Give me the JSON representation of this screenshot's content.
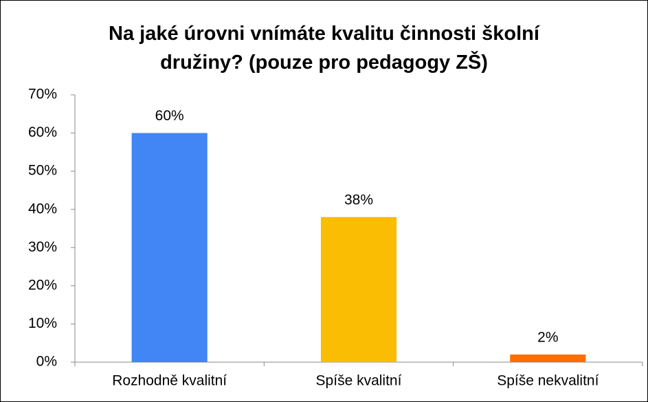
{
  "chart_data": {
    "type": "bar",
    "title": "Na jaké úrovni vnímáte kvalitu činnosti školní družiny? (pouze pro pedagogy ZŠ)",
    "categories": [
      "Rozhodně kvalitní",
      "Spíše kvalitní",
      "Spíše nekvalitní"
    ],
    "values": [
      60,
      38,
      2
    ],
    "value_labels": [
      "60%",
      "38%",
      "2%"
    ],
    "colors": [
      "#4285f4",
      "#fbbc04",
      "#ff6d01"
    ],
    "ylim": [
      0,
      70
    ],
    "yticks": [
      {
        "value": 0,
        "label": "0%"
      },
      {
        "value": 10,
        "label": "10%"
      },
      {
        "value": 20,
        "label": "20%"
      },
      {
        "value": 30,
        "label": "30%"
      },
      {
        "value": 40,
        "label": "40%"
      },
      {
        "value": 50,
        "label": "50%"
      },
      {
        "value": 60,
        "label": "60%"
      },
      {
        "value": 70,
        "label": "70%"
      }
    ],
    "grid": false
  }
}
